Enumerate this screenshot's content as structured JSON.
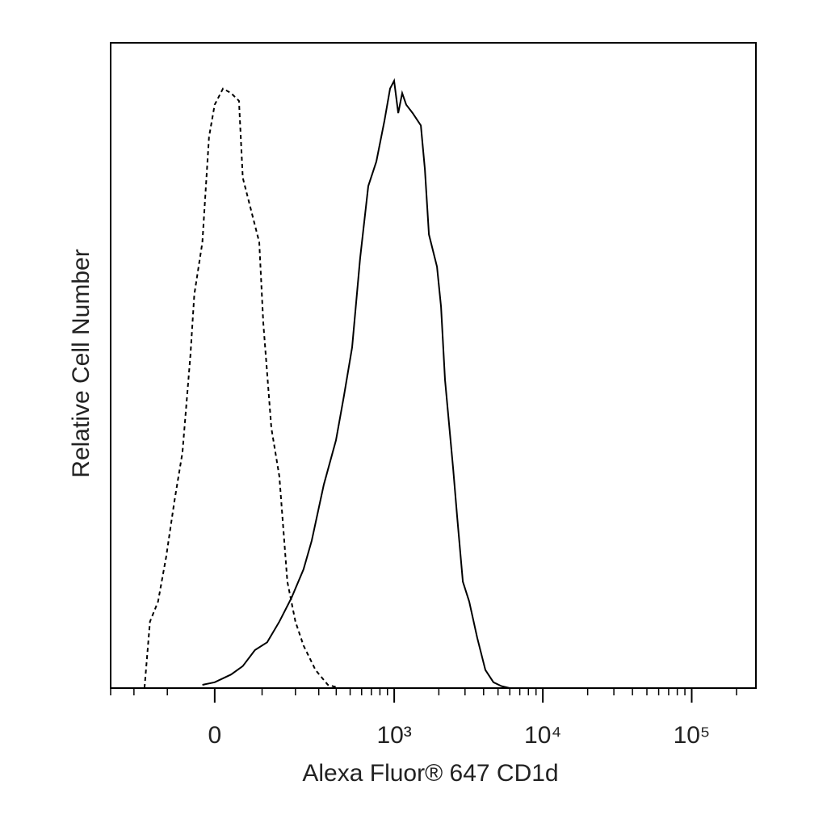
{
  "chart_data": {
    "type": "line",
    "xlabel": "Alexa Fluor® 647 CD1d",
    "ylabel": "Relative Cell Number",
    "xscale": "biexponential",
    "xlim": [
      -300,
      270000
    ],
    "ylim": [
      0,
      100
    ],
    "xticks": [
      0,
      {
        "value": 1000,
        "label": "10³"
      },
      {
        "value": 10000,
        "label": "10⁴"
      },
      {
        "value": 100000,
        "label": "10⁵"
      }
    ],
    "xminorticks": [
      -300,
      -200,
      -100,
      100,
      200,
      300,
      400,
      500,
      600,
      700,
      800,
      900,
      2000,
      3000,
      4000,
      5000,
      6000,
      7000,
      8000,
      9000,
      20000,
      30000,
      40000,
      50000,
      60000,
      70000,
      80000,
      90000,
      200000
    ],
    "series": [
      {
        "color": "#000000",
        "dashed": true,
        "x": [
          -164,
          -147,
          -124,
          -103,
          -83,
          -65,
          -48,
          -40,
          -24,
          -11,
          0,
          16,
          32,
          48,
          56,
          74,
          93,
          103,
          124,
          147,
          172,
          200,
          231,
          284,
          349,
          424
        ],
        "values": [
          0,
          10.3,
          13.4,
          20.3,
          29.0,
          36.5,
          51.6,
          61.0,
          69.1,
          85.4,
          90.4,
          92.9,
          92.2,
          91.0,
          79.1,
          74.1,
          69.1,
          56.6,
          40.3,
          32.8,
          16.5,
          10.3,
          6.6,
          2.8,
          0.5,
          0
        ]
      },
      {
        "color": "#000000",
        "dashed": false,
        "x": [
          -24,
          0,
          32,
          56,
          83,
          113,
          147,
          186,
          231,
          266,
          326,
          398,
          453,
          516,
          586,
          666,
          756,
          858,
          937,
          999,
          1064,
          1133,
          1206,
          1333,
          1513,
          1610,
          1715,
          1944,
          2068,
          2201,
          2495,
          2657,
          2900,
          3200,
          3625,
          4110,
          4660,
          5280,
          5990
        ],
        "values": [
          0.5,
          0.9,
          2.1,
          3.4,
          5.9,
          7.1,
          10.3,
          14.0,
          18.4,
          22.8,
          31.5,
          38.4,
          45.3,
          52.8,
          66.6,
          77.8,
          81.6,
          87.9,
          92.9,
          94.1,
          89.1,
          92.2,
          90.4,
          89.1,
          87.2,
          80.4,
          70.3,
          65.3,
          59.1,
          47.8,
          34.0,
          26.5,
          16.5,
          13.4,
          7.8,
          2.8,
          0.9,
          0.3,
          0
        ]
      }
    ]
  }
}
